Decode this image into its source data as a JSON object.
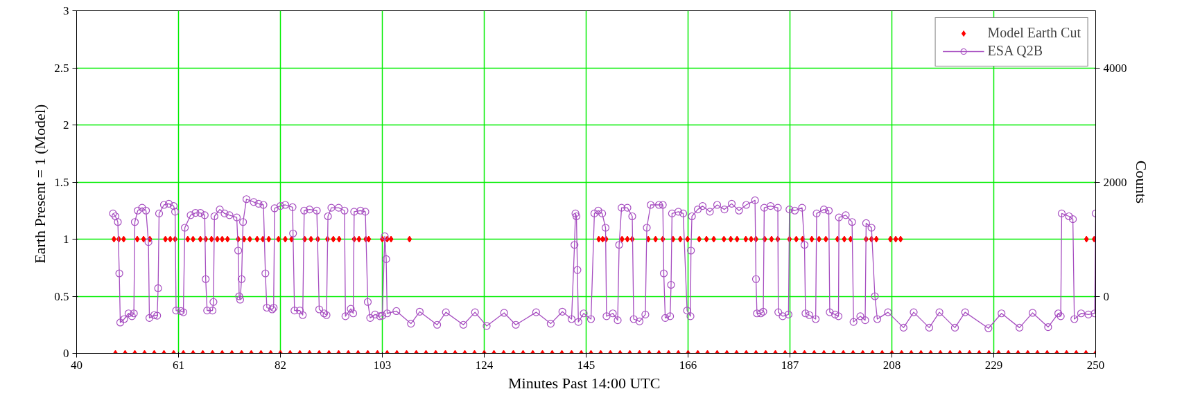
{
  "chart_data": {
    "type": "line",
    "xlabel": "Minutes Past 14:00  UTC",
    "ylabel": "Earth Present = 1  (Model)",
    "y2label": "Counts",
    "xlim": [
      40,
      250
    ],
    "xticks": [
      40,
      61,
      82,
      103,
      124,
      145,
      166,
      187,
      208,
      229,
      250
    ],
    "ylim": [
      0,
      3
    ],
    "yticks": [
      0,
      0.5,
      1,
      1.5,
      2,
      2.5,
      3
    ],
    "y2lim": [
      -1000,
      5000
    ],
    "y2ticks": [
      0,
      2000,
      4000
    ],
    "grid": true,
    "legend": "top right",
    "line_style": "solid",
    "series": [
      {
        "name": "Model Earth Cut",
        "type": "scatter",
        "marker": "diamond",
        "color": "#ff0000",
        "axis": "y",
        "x": [
          47.7,
          48.7,
          49.7,
          52.5,
          53.8,
          55.1,
          58.3,
          59.3,
          60.3,
          62.9,
          64.0,
          65.5,
          66.6,
          67.8,
          69.0,
          70.0,
          71.1,
          73.3,
          74.5,
          75.7,
          77.2,
          78.4,
          79.6,
          81.6,
          83.0,
          84.3,
          87.0,
          88.3,
          89.7,
          91.7,
          92.9,
          94.1,
          97.2,
          98.2,
          99.6,
          100.2,
          103.0,
          104.0,
          104.8,
          108.6,
          147.6,
          148.4,
          149.1,
          152.4,
          153.5,
          154.5,
          157.8,
          159.3,
          160.8,
          162.9,
          164.4,
          165.9,
          168.3,
          169.8,
          171.3,
          173.4,
          174.8,
          176.1,
          177.9,
          179.0,
          180.0,
          181.8,
          183.2,
          184.5,
          186.9,
          188.3,
          189.6,
          191.5,
          193.0,
          194.4,
          196.8,
          198.2,
          199.5,
          202.7,
          203.8,
          204.8,
          207.7,
          208.8,
          209.8,
          248.1,
          249.7,
          48,
          50,
          52,
          54,
          56,
          58,
          60,
          62,
          64,
          66,
          68,
          70,
          72,
          74,
          76,
          78,
          80,
          82,
          84,
          86,
          88,
          90,
          92,
          94,
          96,
          98,
          100,
          102,
          104,
          106,
          108,
          110,
          112,
          114,
          116,
          118,
          120,
          122,
          124,
          126,
          128,
          130,
          132,
          134,
          136,
          138,
          140,
          142,
          144,
          146,
          148,
          150,
          152,
          154,
          156,
          158,
          160,
          162,
          164,
          166,
          168,
          170,
          172,
          174,
          176,
          178,
          180,
          182,
          184,
          186,
          188,
          190,
          192,
          194,
          196,
          198,
          200,
          202,
          204,
          206,
          208,
          210,
          212,
          214,
          216,
          218,
          220,
          222,
          224,
          226,
          228,
          230,
          232,
          234,
          236,
          238,
          240,
          242,
          244,
          246,
          248,
          250
        ],
        "values": [
          1,
          1,
          1,
          1,
          1,
          1,
          1,
          1,
          1,
          1,
          1,
          1,
          1,
          1,
          1,
          1,
          1,
          1,
          1,
          1,
          1,
          1,
          1,
          1,
          1,
          1,
          1,
          1,
          1,
          1,
          1,
          1,
          1,
          1,
          1,
          1,
          1,
          1,
          1,
          1,
          1,
          1,
          1,
          1,
          1,
          1,
          1,
          1,
          1,
          1,
          1,
          1,
          1,
          1,
          1,
          1,
          1,
          1,
          1,
          1,
          1,
          1,
          1,
          1,
          1,
          1,
          1,
          1,
          1,
          1,
          1,
          1,
          1,
          1,
          1,
          1,
          1,
          1,
          1,
          1,
          1,
          0,
          0,
          0,
          0,
          0,
          0,
          0,
          0,
          0,
          0,
          0,
          0,
          0,
          0,
          0,
          0,
          0,
          0,
          0,
          0,
          0,
          0,
          0,
          0,
          0,
          0,
          0,
          0,
          0,
          0,
          0,
          0,
          0,
          0,
          0,
          0,
          0,
          0,
          0,
          0,
          0,
          0,
          0,
          0,
          0,
          0,
          0,
          0,
          0,
          0,
          0,
          0,
          0,
          0,
          0,
          0,
          0,
          0,
          0,
          0,
          0,
          0,
          0,
          0,
          0,
          0,
          0,
          0,
          0,
          0,
          0,
          0,
          0,
          0,
          0,
          0,
          0,
          0,
          0,
          0,
          0,
          0,
          0,
          0,
          0,
          0,
          0,
          0,
          0,
          0,
          0,
          0,
          0,
          0,
          0,
          0,
          0,
          0,
          0,
          0,
          0,
          0
        ]
      },
      {
        "name": "ESA Q2B",
        "marker": "circle",
        "color": "#a64dc0",
        "axis": "y2",
        "x": [
          47.5,
          48.0,
          48.5,
          48.8,
          49.0,
          49.8,
          50.7,
          51.4,
          51.8,
          52.0,
          52.6,
          53.5,
          54.3,
          54.8,
          55.0,
          56.0,
          56.6,
          56.8,
          57.0,
          58.0,
          59.0,
          60.0,
          60.3,
          60.5,
          61.5,
          62.0,
          62.3,
          63.5,
          64.5,
          65.5,
          66.4,
          66.6,
          66.9,
          68.0,
          68.2,
          68.4,
          69.5,
          70.5,
          71.5,
          73.0,
          73.3,
          73.5,
          73.7,
          74.0,
          74.3,
          75.0,
          76.5,
          77.5,
          78.5,
          78.9,
          79.2,
          80.3,
          80.6,
          80.8,
          82.0,
          83.0,
          84.5,
          84.6,
          84.9,
          86.0,
          86.6,
          86.9,
          88.0,
          89.5,
          90.0,
          91.0,
          91.5,
          91.8,
          92.5,
          94.0,
          95.2,
          95.4,
          96.5,
          97.0,
          97.2,
          98.5,
          99.5,
          100.0,
          100.5,
          101.5,
          102.5,
          103.0,
          103.5,
          103.8,
          104.0,
          105.9,
          108.9,
          110.7,
          114.3,
          116.1,
          119.7,
          122.1,
          124.5,
          128.1,
          130.5,
          134.7,
          137.7,
          140.1,
          142.0,
          142.6,
          142.8,
          143.0,
          143.2,
          143.4,
          144.5,
          146.0,
          146.7,
          147.5,
          148.3,
          149.0,
          149.2,
          150.5,
          151.5,
          151.8,
          152.3,
          153.5,
          154.5,
          154.8,
          156.0,
          157.2,
          157.5,
          158.3,
          160.0,
          160.8,
          161.0,
          161.3,
          162.3,
          162.5,
          162.7,
          164.0,
          165.0,
          165.8,
          166.5,
          166.6,
          166.8,
          168.0,
          169.0,
          170.5,
          172.0,
          173.5,
          175.0,
          176.5,
          178.0,
          179.8,
          180.0,
          180.2,
          181.0,
          181.5,
          181.7,
          183.0,
          184.5,
          184.6,
          185.5,
          186.7,
          186.9,
          188.0,
          189.5,
          190.0,
          190.2,
          191.0,
          192.3,
          192.5,
          194.0,
          195.0,
          195.2,
          196.3,
          197.0,
          197.1,
          198.5,
          199.8,
          200.1,
          201.5,
          202.5,
          202.7,
          203.8,
          204.5,
          205.0,
          207.2,
          210.4,
          212.5,
          215.7,
          217.8,
          221.0,
          223.1,
          227.9,
          230.6,
          234.3,
          237.0,
          240.2,
          242.3,
          242.8,
          243.0,
          244.5,
          245.3,
          245.6,
          247.0,
          248.5,
          249.8,
          250.0
        ],
        "values": [
          1450,
          1400,
          1300,
          400,
          -460,
          -400,
          -300,
          -350,
          -300,
          1300,
          1500,
          1550,
          1500,
          950,
          -380,
          -330,
          -340,
          140,
          1450,
          1600,
          1620,
          1580,
          1480,
          -250,
          -260,
          -280,
          1200,
          1420,
          1460,
          1460,
          1420,
          300,
          -250,
          -250,
          -100,
          1400,
          1520,
          1450,
          1420,
          1380,
          800,
          0,
          -60,
          300,
          1300,
          1700,
          1650,
          1620,
          1600,
          400,
          -200,
          -230,
          -200,
          1540,
          1580,
          1600,
          1560,
          1100,
          -250,
          -250,
          -330,
          1500,
          1520,
          1500,
          -230,
          -300,
          -330,
          1400,
          1550,
          1550,
          1500,
          -350,
          -220,
          -300,
          1480,
          1500,
          1480,
          -100,
          -380,
          -320,
          -350,
          -340,
          1050,
          650,
          -300,
          -260,
          -480,
          -270,
          -500,
          -280,
          -500,
          -280,
          -520,
          -290,
          -500,
          -280,
          -480,
          -270,
          -400,
          900,
          1450,
          1400,
          460,
          -450,
          -300,
          -400,
          1450,
          1500,
          1450,
          1200,
          -350,
          -300,
          -420,
          900,
          1550,
          1550,
          1400,
          -400,
          -440,
          -320,
          1200,
          1600,
          1600,
          1600,
          400,
          -380,
          -350,
          200,
          1450,
          1480,
          1450,
          -250,
          -350,
          800,
          1400,
          1520,
          1580,
          1480,
          1600,
          1520,
          1620,
          1500,
          1600,
          1680,
          300,
          -300,
          -300,
          -270,
          1550,
          1580,
          1550,
          -280,
          -350,
          -320,
          1520,
          1500,
          1550,
          900,
          -300,
          -330,
          -400,
          1450,
          1520,
          1500,
          -280,
          -320,
          -350,
          1380,
          1420,
          1300,
          -450,
          -350,
          -420,
          1280,
          1200,
          0,
          -400,
          -280,
          -550,
          -280,
          -550,
          -280,
          -550,
          -280,
          -560,
          -300,
          -550,
          -290,
          -540,
          -300,
          -350,
          1450,
          1400,
          1350,
          -400,
          -300,
          -320,
          -300,
          1450
        ]
      }
    ]
  }
}
